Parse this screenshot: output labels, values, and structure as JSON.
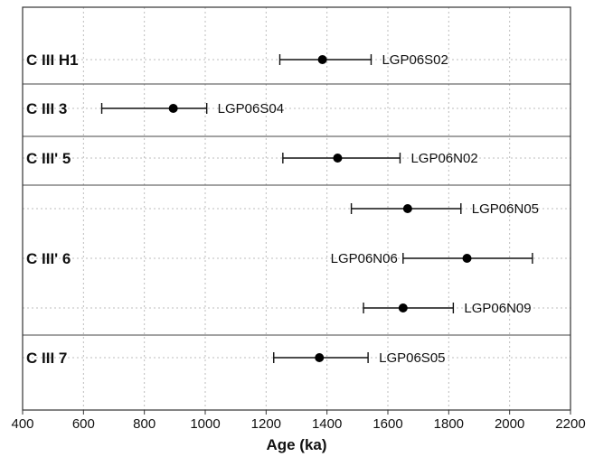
{
  "chart_data": {
    "type": "scatter",
    "title": "",
    "xlabel": "Age (ka)",
    "ylabel": "",
    "xlim": [
      400,
      2200
    ],
    "x_ticks": [
      400,
      600,
      800,
      1000,
      1200,
      1400,
      1600,
      1800,
      2000,
      2200
    ],
    "grid": true,
    "groups": [
      "C III H1",
      "C III 3",
      "C III' 5",
      "C III' 6",
      "C III 7"
    ],
    "points": [
      {
        "label": "LGP06S02",
        "group": "C III H1",
        "x": 1385,
        "xerr_low": 1245,
        "xerr_high": 1545
      },
      {
        "label": "LGP06S04",
        "group": "C III 3",
        "x": 895,
        "xerr_low": 660,
        "xerr_high": 1005
      },
      {
        "label": "LGP06N02",
        "group": "C III' 5",
        "x": 1435,
        "xerr_low": 1255,
        "xerr_high": 1640
      },
      {
        "label": "LGP06N05",
        "group": "C III' 6",
        "x": 1665,
        "xerr_low": 1480,
        "xerr_high": 1840
      },
      {
        "label": "LGP06N06",
        "group": "C III' 6",
        "x": 1860,
        "xerr_low": 1650,
        "xerr_high": 2075
      },
      {
        "label": "LGP06N09",
        "group": "C III' 6",
        "x": 1650,
        "xerr_low": 1520,
        "xerr_high": 1815
      },
      {
        "label": "LGP06S05",
        "group": "C III 7",
        "x": 1375,
        "xerr_low": 1225,
        "xerr_high": 1535
      }
    ]
  }
}
